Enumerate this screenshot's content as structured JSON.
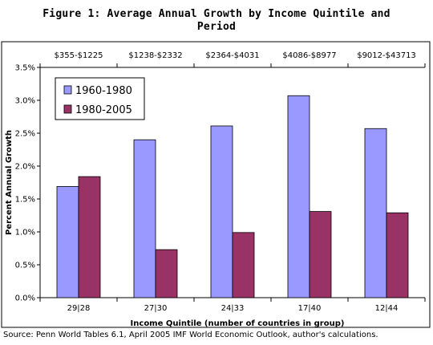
{
  "title": "Figure 1:  Average Annual Growth by Income Quintile and Period",
  "source": "Source:  Penn World Tables 6.1, April 2005 IMF World Economic Outlook, author's calculations.",
  "chart_data": {
    "type": "bar",
    "title": "Figure 1:  Average Annual Growth by Income Quintile and Period",
    "xlabel": "Income Quintile (number of countries in group)",
    "ylabel": "Percent Annual Growth",
    "categories": [
      "29|28",
      "27|30",
      "24|33",
      "17|40",
      "12|44"
    ],
    "top_labels": [
      "$355-$1225",
      "$1238-$2332",
      "$2364-$4031",
      "$4086-$8977",
      "$9012-$43713"
    ],
    "yticks": [
      "0.0%",
      "0.5%",
      "1.0%",
      "1.5%",
      "2.0%",
      "2.5%",
      "3.0%",
      "3.5%"
    ],
    "ylim": [
      0,
      3.5
    ],
    "grid": false,
    "legend_position": "top-left",
    "series": [
      {
        "name": "1960-1980",
        "color": "#9999ff",
        "values": [
          1.69,
          2.4,
          2.61,
          3.07,
          2.57
        ]
      },
      {
        "name": "1980-2005",
        "color": "#993366",
        "values": [
          1.84,
          0.73,
          0.99,
          1.31,
          1.29
        ]
      }
    ]
  }
}
